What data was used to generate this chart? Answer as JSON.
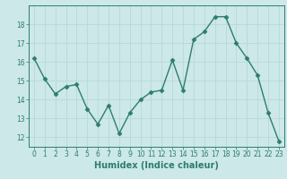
{
  "x": [
    0,
    1,
    2,
    3,
    4,
    5,
    6,
    7,
    8,
    9,
    10,
    11,
    12,
    13,
    14,
    15,
    16,
    17,
    18,
    19,
    20,
    21,
    22,
    23
  ],
  "y": [
    16.2,
    15.1,
    14.3,
    14.7,
    14.8,
    13.5,
    12.7,
    13.7,
    12.2,
    13.3,
    14.0,
    14.4,
    14.5,
    16.1,
    14.5,
    17.2,
    17.6,
    18.4,
    18.4,
    17.0,
    16.2,
    15.3,
    13.3,
    11.8
  ],
  "line_color": "#2e7d6e",
  "marker": "D",
  "marker_size": 2.5,
  "linewidth": 1.0,
  "bg_color": "#cce8e8",
  "grid_color": "#b8d8d8",
  "xlabel": "Humidex (Indice chaleur)",
  "xlim": [
    -0.5,
    23.5
  ],
  "ylim": [
    11.5,
    19.0
  ],
  "yticks": [
    12,
    13,
    14,
    15,
    16,
    17,
    18
  ],
  "xticks": [
    0,
    1,
    2,
    3,
    4,
    5,
    6,
    7,
    8,
    9,
    10,
    11,
    12,
    13,
    14,
    15,
    16,
    17,
    18,
    19,
    20,
    21,
    22,
    23
  ],
  "tick_label_fontsize": 5.5,
  "xlabel_fontsize": 7.0
}
